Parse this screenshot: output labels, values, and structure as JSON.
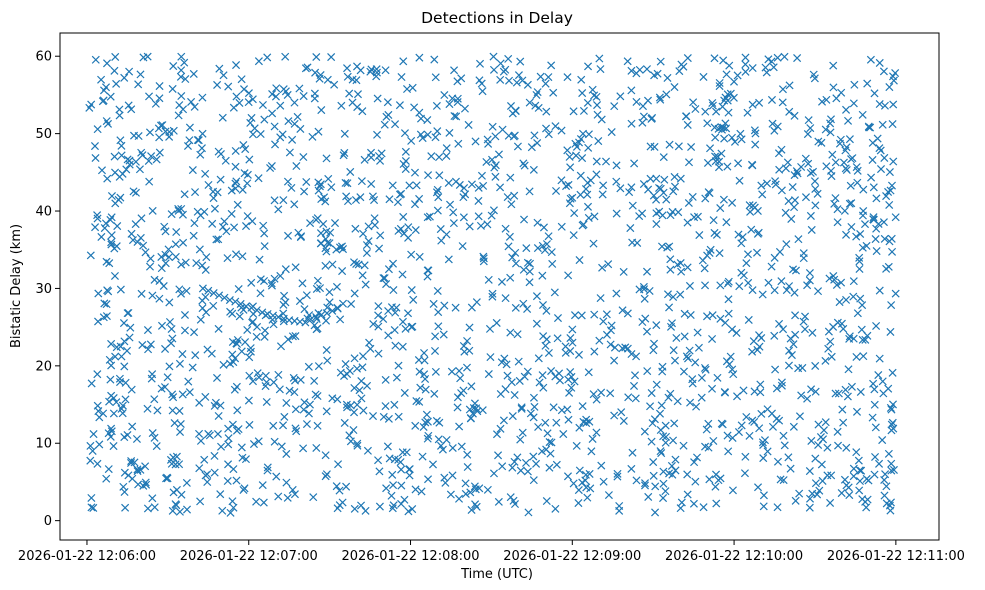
{
  "chart_data": {
    "type": "scatter",
    "title": "Detections in Delay",
    "xlabel": "Time (UTC)",
    "ylabel": "Bistatic Delay (km)",
    "marker": "x",
    "color": "#1f77b4",
    "grid": false,
    "legend": "none",
    "xlim": [
      "2026-01-22 12:05:50",
      "2026-01-22 12:11:16"
    ],
    "ylim": [
      -2.5,
      63
    ],
    "x_ticks": [
      "2026-01-22 12:06:00",
      "2026-01-22 12:07:00",
      "2026-01-22 12:08:00",
      "2026-01-22 12:09:00",
      "2026-01-22 12:10:00",
      "2026-01-22 12:11:00"
    ],
    "y_ticks": [
      "0",
      "10",
      "20",
      "30",
      "40",
      "50",
      "60"
    ],
    "clutter": {
      "description_free_noise": true,
      "point_count": 2000,
      "x_range": [
        "2026-01-22 12:06:00",
        "2026-01-22 12:11:00"
      ],
      "y_range": [
        1,
        60
      ]
    },
    "track": {
      "x": [
        "2026-01-22 12:06:43",
        "2026-01-22 12:06:45",
        "2026-01-22 12:06:47",
        "2026-01-22 12:06:49",
        "2026-01-22 12:06:51",
        "2026-01-22 12:06:53",
        "2026-01-22 12:06:55",
        "2026-01-22 12:06:57",
        "2026-01-22 12:06:59",
        "2026-01-22 12:07:01",
        "2026-01-22 12:07:03",
        "2026-01-22 12:07:05",
        "2026-01-22 12:07:07",
        "2026-01-22 12:07:09",
        "2026-01-22 12:07:11",
        "2026-01-22 12:07:13",
        "2026-01-22 12:07:15",
        "2026-01-22 12:07:17",
        "2026-01-22 12:07:19",
        "2026-01-22 12:07:21",
        "2026-01-22 12:07:23",
        "2026-01-22 12:07:25",
        "2026-01-22 12:07:27",
        "2026-01-22 12:07:29",
        "2026-01-22 12:07:31",
        "2026-01-22 12:07:33"
      ],
      "y": [
        30.0,
        29.7,
        29.4,
        29.1,
        28.8,
        28.5,
        28.3,
        28.0,
        27.7,
        27.5,
        27.2,
        26.9,
        26.7,
        26.5,
        26.3,
        26.1,
        25.9,
        25.8,
        25.7,
        25.6,
        26.0,
        26.3,
        26.6,
        26.8,
        27.1,
        27.4
      ]
    }
  }
}
